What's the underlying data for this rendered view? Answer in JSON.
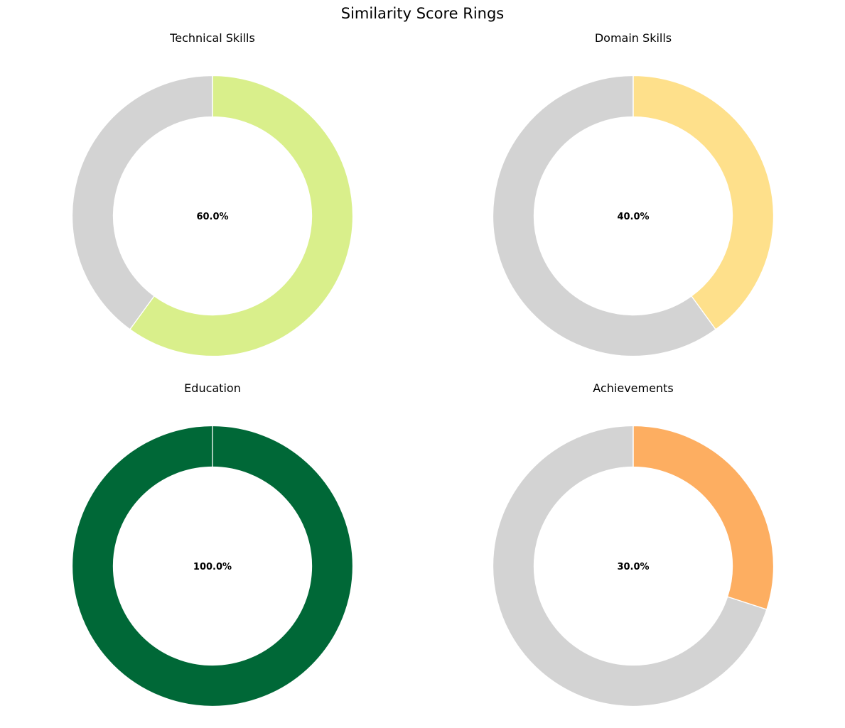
{
  "figure": {
    "title": "Similarity Score Rings"
  },
  "colors": {
    "remainder": "#d3d3d3",
    "separator": "#ffffff"
  },
  "chart_data": [
    {
      "type": "donut",
      "title": "Technical Skills",
      "value": 60.0,
      "max": 100,
      "label": "60.0%",
      "color": "#d9ef8b"
    },
    {
      "type": "donut",
      "title": "Domain Skills",
      "value": 40.0,
      "max": 100,
      "label": "40.0%",
      "color": "#fee08b"
    },
    {
      "type": "donut",
      "title": "Education",
      "value": 100.0,
      "max": 100,
      "label": "100.0%",
      "color": "#006837"
    },
    {
      "type": "donut",
      "title": "Achievements",
      "value": 30.0,
      "max": 100,
      "label": "30.0%",
      "color": "#fdae61"
    }
  ]
}
